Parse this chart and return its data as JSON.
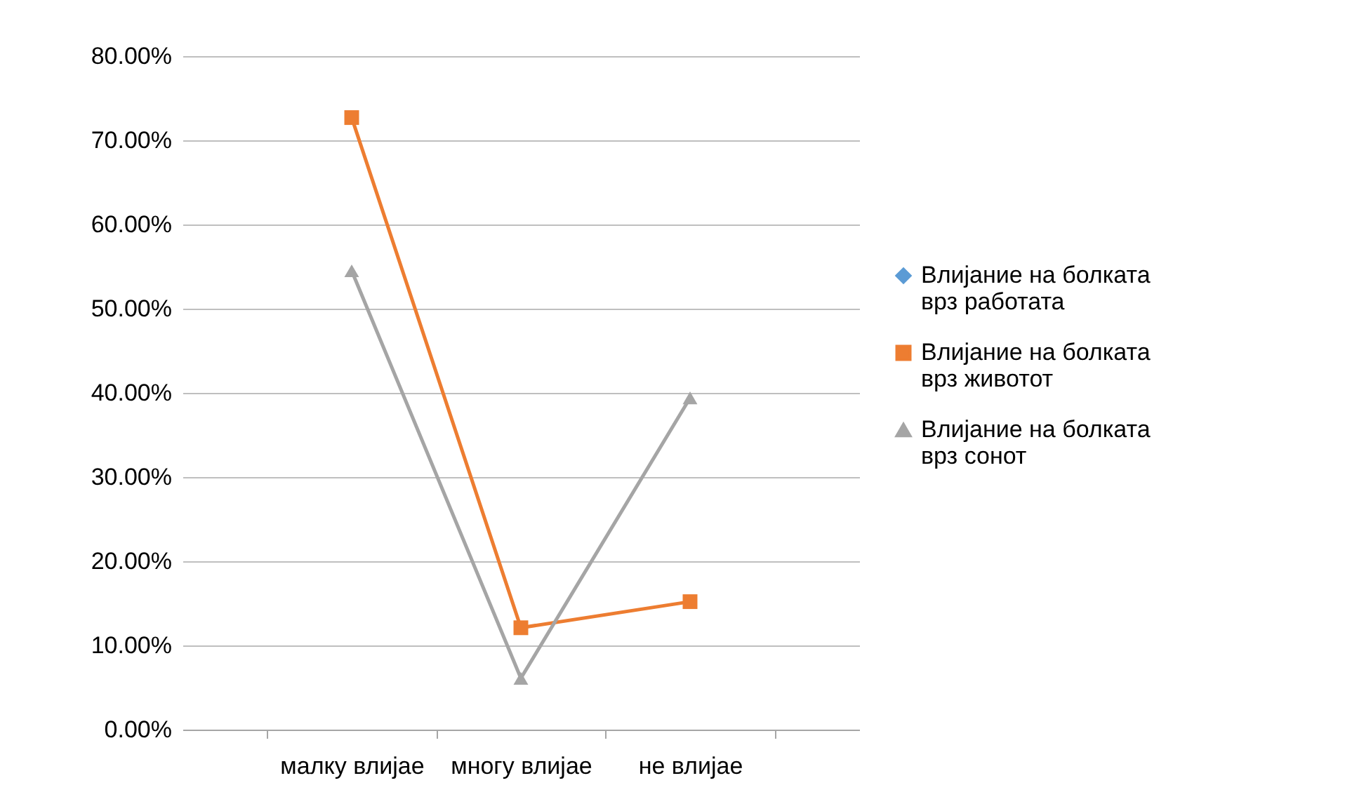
{
  "chart_data": {
    "type": "line",
    "categories": [
      "малку влијае",
      "многу влијае",
      "не влијае"
    ],
    "series": [
      {
        "name": "Влијание на болката врз работата",
        "color": "#5b9bd5",
        "marker": "diamond",
        "values": [
          null,
          null,
          null
        ]
      },
      {
        "name": "Влијание на болката врз животот",
        "color": "#ed7d31",
        "marker": "square",
        "values": [
          72.7,
          12.1,
          15.2
        ]
      },
      {
        "name": "Влијание на болката врз сонот",
        "color": "#a5a5a5",
        "marker": "triangle",
        "values": [
          54.5,
          6.1,
          39.4
        ]
      }
    ],
    "ylim": [
      0,
      80
    ],
    "yticks": [
      {
        "value": 0,
        "label": "0.00%"
      },
      {
        "value": 10,
        "label": "10.00%"
      },
      {
        "value": 20,
        "label": "20.00%"
      },
      {
        "value": 30,
        "label": "30.00%"
      },
      {
        "value": 40,
        "label": "40.00%"
      },
      {
        "value": 50,
        "label": "50.00%"
      },
      {
        "value": 60,
        "label": "60.00%"
      },
      {
        "value": 70,
        "label": "70.00%"
      },
      {
        "value": 80,
        "label": "80.00%"
      }
    ],
    "grid": "y",
    "legend": "right"
  }
}
